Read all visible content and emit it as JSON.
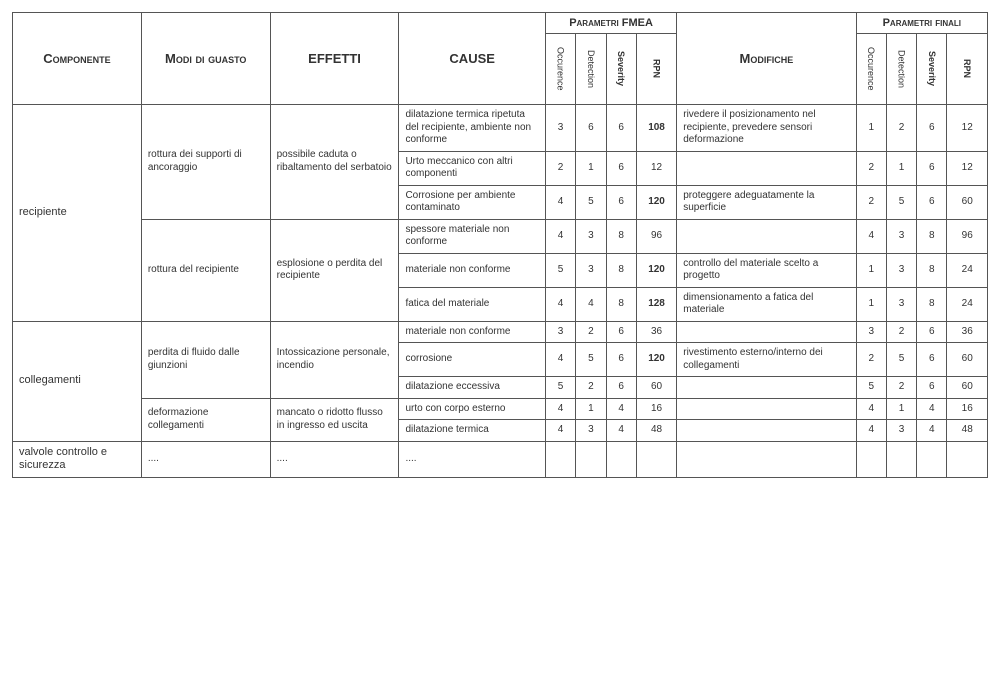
{
  "headers": {
    "componente": "Componente",
    "modi": "Modi di guasto",
    "effetti": "EFFETTI",
    "cause": "CAUSE",
    "parametri_fmea": "Parametri FMEA",
    "modifiche": "Modifiche",
    "parametri_finali": "Parametri finali",
    "occurence": "Occurence",
    "detection": "Detection",
    "severity": "Severity",
    "rpn": "RPN"
  },
  "rows": [
    {
      "componente": "recipiente",
      "comp_rowspan": 6,
      "modi": "rottura dei supporti di ancoraggio",
      "modi_rowspan": 3,
      "effetti": "possibile caduta o ribaltamento del serbatoio",
      "eff_rowspan": 3,
      "cause": "dilatazione termica ripetuta del recipiente, ambiente non conforme",
      "f": {
        "o": "3",
        "d": "6",
        "s": "6",
        "r": "108",
        "rb": true
      },
      "mod": "rivedere il posizionamento nel recipiente, prevedere sensori deformazione",
      "p": {
        "o": "1",
        "d": "2",
        "s": "6",
        "r": "12"
      }
    },
    {
      "cause": "Urto meccanico con altri componenti",
      "f": {
        "o": "2",
        "d": "1",
        "s": "6",
        "r": "12"
      },
      "mod": "",
      "p": {
        "o": "2",
        "d": "1",
        "s": "6",
        "r": "12"
      }
    },
    {
      "cause": "Corrosione per ambiente contaminato",
      "f": {
        "o": "4",
        "d": "5",
        "s": "6",
        "r": "120",
        "rb": true
      },
      "mod": "proteggere adeguatamente la superficie",
      "p": {
        "o": "2",
        "d": "5",
        "s": "6",
        "r": "60"
      }
    },
    {
      "modi": "rottura del recipiente",
      "modi_rowspan": 3,
      "effetti": "esplosione o perdita del recipiente",
      "eff_rowspan": 3,
      "cause": "spessore materiale non conforme",
      "f": {
        "o": "4",
        "d": "3",
        "s": "8",
        "r": "96"
      },
      "mod": "",
      "p": {
        "o": "4",
        "d": "3",
        "s": "8",
        "r": "96"
      }
    },
    {
      "cause": "materiale non conforme",
      "f": {
        "o": "5",
        "d": "3",
        "s": "8",
        "r": "120",
        "rb": true
      },
      "mod": "controllo del materiale scelto a progetto",
      "p": {
        "o": "1",
        "d": "3",
        "s": "8",
        "r": "24"
      }
    },
    {
      "cause": "fatica del materiale",
      "f": {
        "o": "4",
        "d": "4",
        "s": "8",
        "r": "128",
        "rb": true
      },
      "mod": "dimensionamento a fatica del materiale",
      "p": {
        "o": "1",
        "d": "3",
        "s": "8",
        "r": "24"
      }
    },
    {
      "componente": "collegamenti",
      "comp_rowspan": 5,
      "modi": "perdita di fluido dalle giunzioni",
      "modi_rowspan": 3,
      "effetti": "Intossicazione personale, incendio",
      "eff_rowspan": 3,
      "cause": "materiale non conforme",
      "f": {
        "o": "3",
        "d": "2",
        "s": "6",
        "r": "36"
      },
      "mod": "",
      "p": {
        "o": "3",
        "d": "2",
        "s": "6",
        "r": "36"
      }
    },
    {
      "cause": "corrosione",
      "f": {
        "o": "4",
        "d": "5",
        "s": "6",
        "r": "120",
        "rb": true
      },
      "mod": "rivestimento esterno/interno dei collegamenti",
      "p": {
        "o": "2",
        "d": "5",
        "s": "6",
        "r": "60"
      }
    },
    {
      "cause": "dilatazione eccessiva",
      "f": {
        "o": "5",
        "d": "2",
        "s": "6",
        "r": "60"
      },
      "mod": "",
      "p": {
        "o": "5",
        "d": "2",
        "s": "6",
        "r": "60"
      }
    },
    {
      "modi": "deformazione collegamenti",
      "modi_rowspan": 2,
      "effetti": "mancato o ridotto flusso in ingresso ed uscita",
      "eff_rowspan": 2,
      "cause": "urto con corpo esterno",
      "f": {
        "o": "4",
        "d": "1",
        "s": "4",
        "r": "16"
      },
      "mod": "",
      "p": {
        "o": "4",
        "d": "1",
        "s": "4",
        "r": "16"
      }
    },
    {
      "cause": "dilatazione termica",
      "f": {
        "o": "4",
        "d": "3",
        "s": "4",
        "r": "48"
      },
      "mod": "",
      "p": {
        "o": "4",
        "d": "3",
        "s": "4",
        "r": "48"
      }
    },
    {
      "componente": "valvole controllo e sicurezza",
      "comp_rowspan": 1,
      "modi": "....",
      "modi_rowspan": 1,
      "effetti": "....",
      "eff_rowspan": 1,
      "cause": "....",
      "f": {
        "o": "",
        "d": "",
        "s": "",
        "r": ""
      },
      "mod": "",
      "p": {
        "o": "",
        "d": "",
        "s": "",
        "r": ""
      }
    }
  ]
}
